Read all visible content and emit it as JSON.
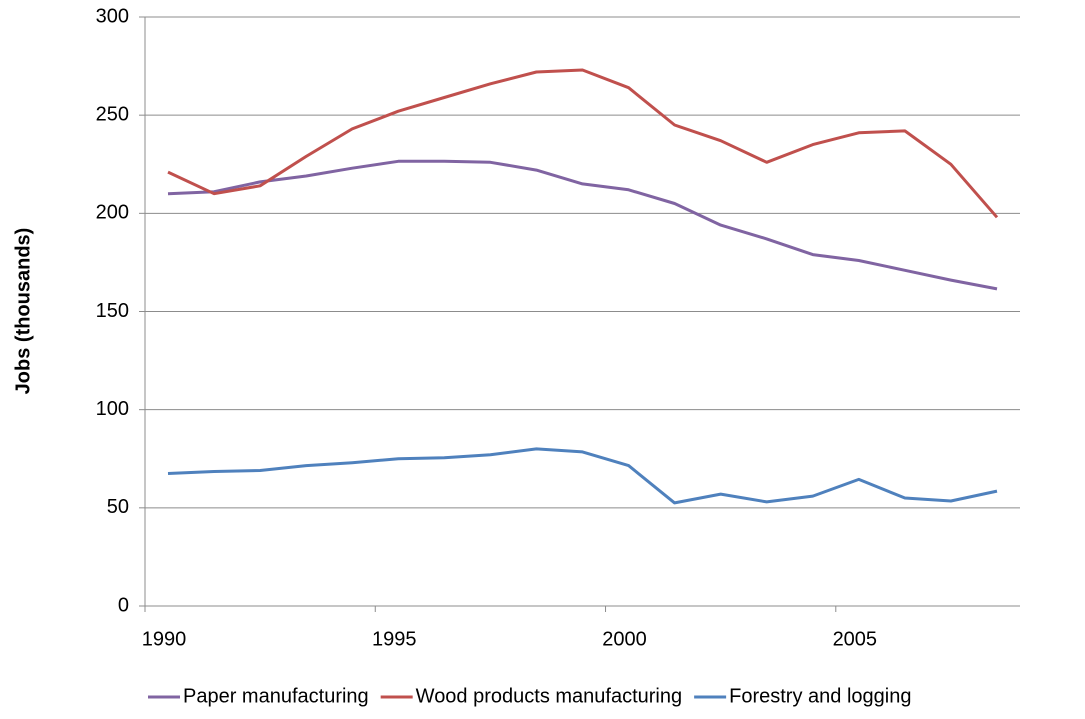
{
  "chart_data": {
    "type": "line",
    "y_label": "Jobs (thousands)",
    "categories": [
      "1990",
      null,
      null,
      null,
      null,
      "1995",
      null,
      null,
      null,
      null,
      "2000",
      null,
      null,
      null,
      null,
      "2005",
      null,
      null,
      null
    ],
    "series": [
      {
        "name": "Paper manufacturing",
        "color": "#8064a2",
        "values": [
          210,
          211,
          216,
          219,
          223,
          226.5,
          226.5,
          226,
          222,
          215,
          212,
          205,
          194,
          187,
          179,
          176,
          171,
          166,
          161.5
        ]
      },
      {
        "name": "Wood products manufacturing",
        "color": "#c0504d",
        "values": [
          221,
          210,
          214,
          229,
          243,
          252,
          259,
          266,
          272,
          273,
          264,
          245,
          237,
          226,
          235,
          241,
          242,
          225,
          198
        ]
      },
      {
        "name": "Forestry and logging",
        "color": "#4f81bd",
        "values": [
          67.5,
          68.5,
          69,
          71.5,
          73,
          75,
          75.5,
          77,
          80,
          78.5,
          71.5,
          52.5,
          57,
          53,
          56,
          64.5,
          55,
          53.5,
          58.5
        ]
      }
    ],
    "ylim": [
      0,
      300
    ],
    "yticks": [
      0,
      50,
      100,
      150,
      200,
      250,
      300
    ],
    "grid": true,
    "legend": "bottom"
  }
}
